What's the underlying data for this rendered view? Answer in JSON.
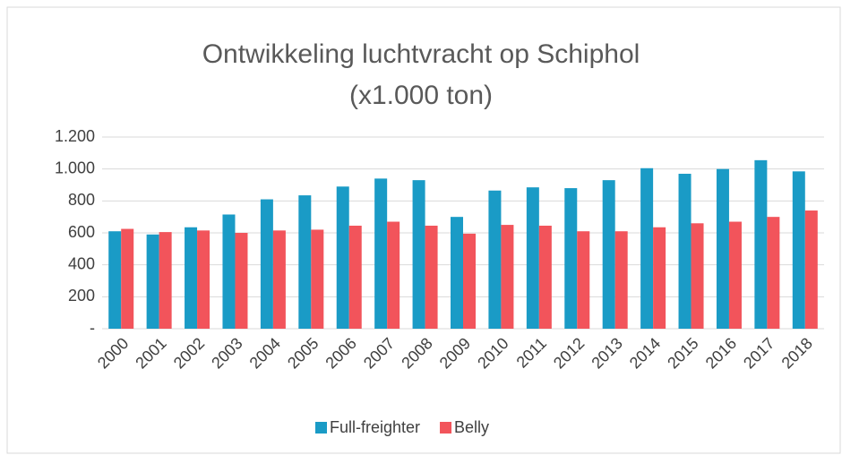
{
  "chart_data": {
    "type": "bar",
    "title": "Ontwikkeling luchtvracht op Schiphol (x1.000 ton)",
    "categories": [
      "2000",
      "2001",
      "2002",
      "2003",
      "2004",
      "2005",
      "2006",
      "2007",
      "2008",
      "2009",
      "2010",
      "2011",
      "2012",
      "2013",
      "2014",
      "2015",
      "2016",
      "2017",
      "2018"
    ],
    "series": [
      {
        "name": "Full-freighter",
        "color": "#1a9bc6",
        "values": [
          610,
          590,
          635,
          715,
          810,
          835,
          890,
          940,
          930,
          700,
          865,
          885,
          880,
          930,
          1005,
          970,
          1000,
          1055,
          985
        ]
      },
      {
        "name": "Belly",
        "color": "#f2545b",
        "values": [
          625,
          605,
          615,
          600,
          615,
          620,
          645,
          670,
          645,
          595,
          650,
          645,
          610,
          610,
          635,
          660,
          670,
          700,
          740
        ]
      }
    ],
    "ylim": [
      0,
      1200
    ],
    "yticks": [
      {
        "value": 0,
        "label": "-"
      },
      200,
      400,
      600,
      800,
      {
        "value": 1000,
        "label": "1.000"
      },
      {
        "value": 1200,
        "label": "1.200"
      }
    ],
    "grid": true,
    "legend": "bottom"
  }
}
